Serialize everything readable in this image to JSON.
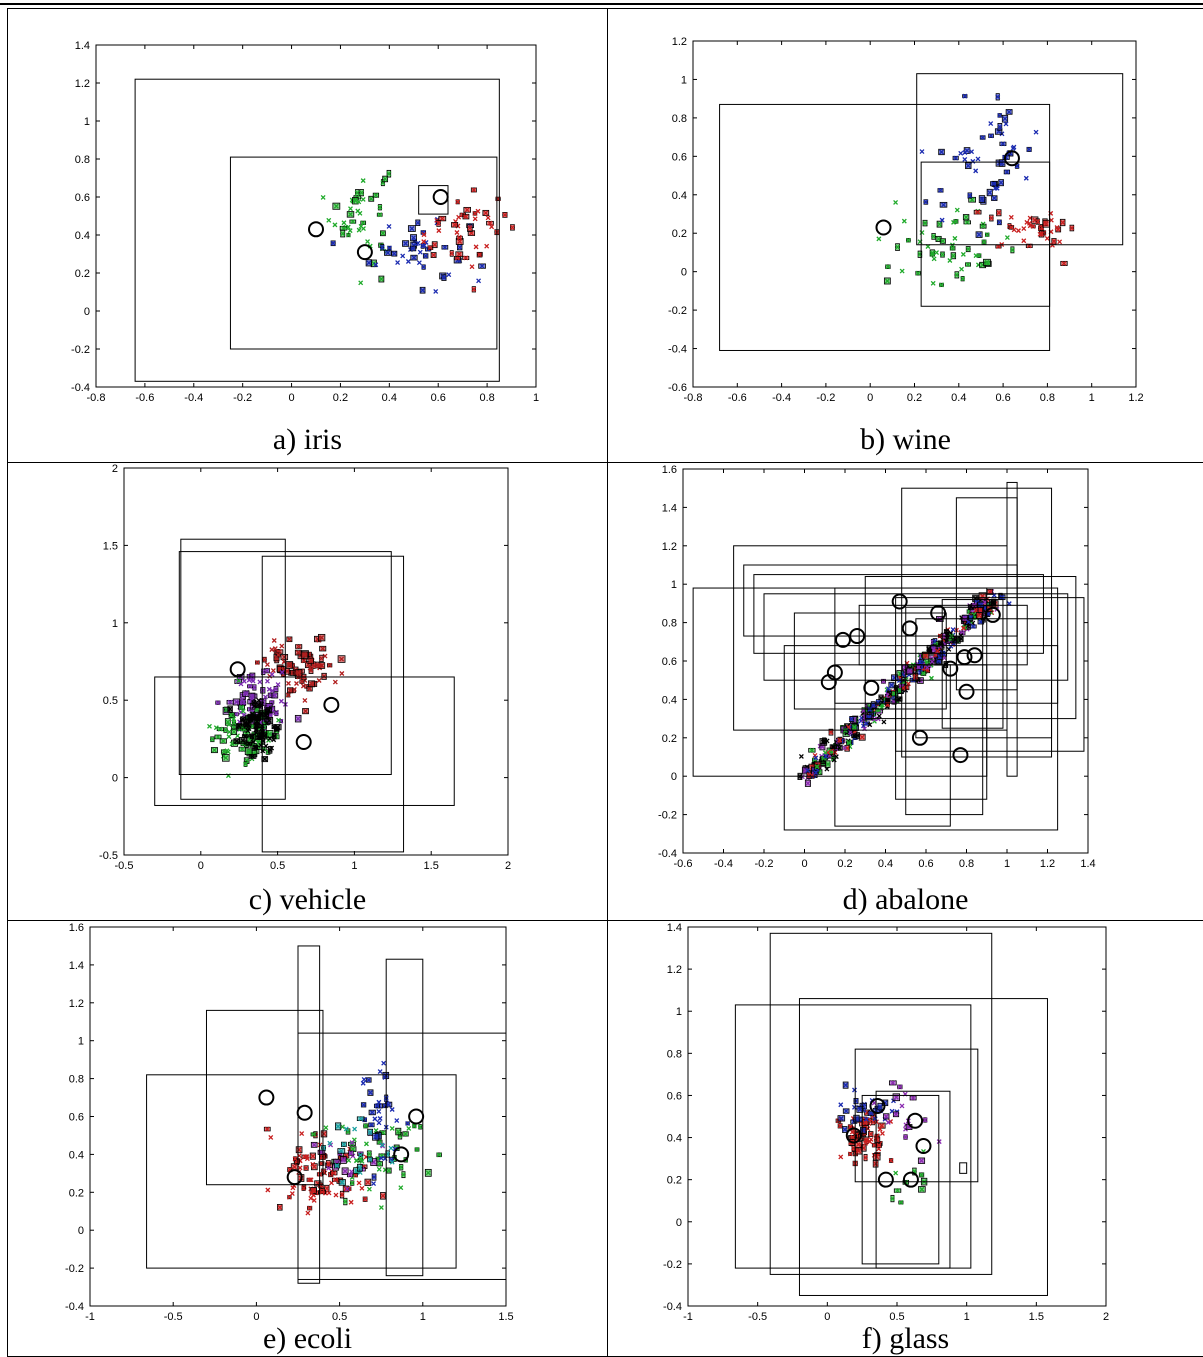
{
  "panels": [
    {
      "caption": "a) iris"
    },
    {
      "caption": "b) wine"
    },
    {
      "caption": "c) vehicle"
    },
    {
      "caption": "d) abalone"
    },
    {
      "caption": "e) ecoli"
    },
    {
      "caption": "f) glass"
    }
  ],
  "chart_data": [
    {
      "type": "scatter",
      "title": "a) iris",
      "xlim": [
        -0.8,
        1
      ],
      "ylim": [
        -0.4,
        1.4
      ],
      "xticks": [
        -0.8,
        -0.6,
        -0.4,
        -0.2,
        0,
        0.2,
        0.4,
        0.6,
        0.8,
        1
      ],
      "xtick_labels": [
        "-0.8",
        "-0.6",
        "-0.4",
        "-0.2",
        "0",
        "0.2",
        "0.4",
        "0.6",
        "0.8",
        "1"
      ],
      "yticks": [
        -0.4,
        -0.2,
        0,
        0.2,
        0.4,
        0.6,
        0.8,
        1,
        1.2,
        1.4
      ],
      "ytick_labels": [
        "-0.4",
        "-0.2",
        "0",
        "0.2",
        "0.4",
        "0.6",
        "0.8",
        "1",
        "1.2",
        "1.4"
      ],
      "colors": [
        "#1faa2a",
        "#1a2ab0",
        "#c81e1e"
      ],
      "clusters": [
        {
          "center": [
            0.28,
            0.52
          ],
          "spread": [
            0.06,
            0.13
          ],
          "count": 45
        },
        {
          "center": [
            0.52,
            0.32
          ],
          "spread": [
            0.1,
            0.1
          ],
          "count": 45
        },
        {
          "center": [
            0.7,
            0.42
          ],
          "spread": [
            0.1,
            0.1
          ],
          "count": 45
        }
      ],
      "circles": [
        [
          0.1,
          0.43
        ],
        [
          0.3,
          0.31
        ],
        [
          0.61,
          0.6
        ]
      ],
      "boxes": [
        [
          -0.64,
          -0.37,
          0.85,
          1.22
        ],
        [
          -0.25,
          -0.2,
          0.84,
          0.81
        ],
        [
          0.52,
          0.51,
          0.64,
          0.66
        ]
      ]
    },
    {
      "type": "scatter",
      "title": "b) wine",
      "xlim": [
        -0.8,
        1.2
      ],
      "ylim": [
        -0.6,
        1.2
      ],
      "xticks": [
        -0.8,
        -0.6,
        -0.4,
        -0.2,
        0,
        0.2,
        0.4,
        0.6,
        0.8,
        1,
        1.2
      ],
      "xtick_labels": [
        "-0.8",
        "-0.6",
        "-0.4",
        "-0.2",
        "0",
        "0.2",
        "0.4",
        "0.6",
        "0.8",
        "1",
        "1.2"
      ],
      "yticks": [
        -0.6,
        -0.4,
        -0.2,
        0,
        0.2,
        0.4,
        0.6,
        0.8,
        1,
        1.2
      ],
      "ytick_labels": [
        "-0.6",
        "-0.4",
        "-0.2",
        "0",
        "0.2",
        "0.4",
        "0.6",
        "0.8",
        "1",
        "1.2"
      ],
      "colors": [
        "#1faa2a",
        "#1a2ab0",
        "#c81e1e"
      ],
      "clusters": [
        {
          "center": [
            0.38,
            0.14
          ],
          "spread": [
            0.14,
            0.1
          ],
          "count": 55
        },
        {
          "center": [
            0.52,
            0.58
          ],
          "spread": [
            0.12,
            0.16
          ],
          "count": 55
        },
        {
          "center": [
            0.75,
            0.22
          ],
          "spread": [
            0.1,
            0.05
          ],
          "count": 40
        }
      ],
      "circles": [
        [
          0.06,
          0.23
        ],
        [
          0.64,
          0.59
        ]
      ],
      "boxes": [
        [
          -0.68,
          -0.41,
          0.81,
          0.87
        ],
        [
          0.21,
          0.14,
          1.14,
          1.03
        ],
        [
          0.23,
          -0.18,
          0.81,
          0.57
        ]
      ]
    },
    {
      "type": "scatter",
      "title": "c) vehicle",
      "xlim": [
        -0.5,
        2
      ],
      "ylim": [
        -0.5,
        2
      ],
      "xticks": [
        -0.5,
        0,
        0.5,
        1,
        1.5,
        2
      ],
      "xtick_labels": [
        "-0.5",
        "0",
        "0.5",
        "1",
        "1.5",
        "2"
      ],
      "yticks": [
        -0.5,
        0,
        0.5,
        1,
        1.5,
        2
      ],
      "ytick_labels": [
        "-0.5",
        "0",
        "0.5",
        "1",
        "1.5",
        "2"
      ],
      "colors": [
        "#b01e1e",
        "#7a2ab0",
        "#1faa2a",
        "#000000"
      ],
      "clusters": [
        {
          "center": [
            0.65,
            0.72
          ],
          "spread": [
            0.12,
            0.09
          ],
          "count": 90
        },
        {
          "center": [
            0.38,
            0.48
          ],
          "spread": [
            0.1,
            0.1
          ],
          "count": 90
        },
        {
          "center": [
            0.3,
            0.28
          ],
          "spread": [
            0.1,
            0.1
          ],
          "count": 90
        },
        {
          "center": [
            0.38,
            0.32
          ],
          "spread": [
            0.07,
            0.09
          ],
          "count": 70
        }
      ],
      "circles": [
        [
          0.24,
          0.7
        ],
        [
          0.85,
          0.47
        ],
        [
          0.67,
          0.23
        ]
      ],
      "boxes": [
        [
          -0.13,
          -0.14,
          0.55,
          1.54
        ],
        [
          -0.14,
          0.02,
          1.24,
          1.46
        ],
        [
          0.4,
          -0.48,
          1.32,
          1.43
        ],
        [
          -0.3,
          -0.18,
          1.65,
          0.65
        ]
      ]
    },
    {
      "type": "scatter",
      "title": "d) abalone",
      "xlim": [
        -0.6,
        1.4
      ],
      "ylim": [
        -0.4,
        1.6
      ],
      "xticks": [
        -0.6,
        -0.4,
        -0.2,
        0,
        0.2,
        0.4,
        0.6,
        0.8,
        1,
        1.2,
        1.4
      ],
      "xtick_labels": [
        "-0.6",
        "-0.4",
        "-0.2",
        "0",
        "0.2",
        "0.4",
        "0.6",
        "0.8",
        "1",
        "1.2",
        "1.4"
      ],
      "yticks": [
        -0.4,
        -0.2,
        0,
        0.2,
        0.4,
        0.6,
        0.8,
        1,
        1.2,
        1.4,
        1.6
      ],
      "ytick_labels": [
        "-0.4",
        "-0.2",
        "0",
        "0.2",
        "0.4",
        "0.6",
        "0.8",
        "1",
        "1.2",
        "1.4",
        "1.6"
      ],
      "colors": [
        "#c81e1e",
        "#1faa2a",
        "#1a2ab0",
        "#8a2ab0",
        "#000000"
      ],
      "diagonal": {
        "from": [
          0.0,
          0.0
        ],
        "to": [
          0.95,
          0.95
        ],
        "jitter": 0.03,
        "count": 420
      },
      "circles": [
        [
          0.47,
          0.91
        ],
        [
          0.66,
          0.85
        ],
        [
          0.93,
          0.84
        ],
        [
          0.52,
          0.77
        ],
        [
          0.19,
          0.71
        ],
        [
          0.26,
          0.73
        ],
        [
          0.15,
          0.54
        ],
        [
          0.12,
          0.49
        ],
        [
          0.33,
          0.46
        ],
        [
          0.72,
          0.56
        ],
        [
          0.84,
          0.63
        ],
        [
          0.79,
          0.62
        ],
        [
          0.8,
          0.44
        ],
        [
          0.57,
          0.2
        ],
        [
          0.77,
          0.11
        ]
      ],
      "boxes": [
        [
          -0.55,
          0.0,
          0.9,
          0.98
        ],
        [
          -0.35,
          0.24,
          1.0,
          1.2
        ],
        [
          -0.3,
          0.73,
          1.05,
          1.1
        ],
        [
          -0.25,
          0.64,
          1.18,
          1.05
        ],
        [
          -0.2,
          0.5,
          1.3,
          0.95
        ],
        [
          -0.1,
          -0.28,
          1.25,
          0.68
        ],
        [
          -0.05,
          0.35,
          0.7,
          0.85
        ],
        [
          0.15,
          0.38,
          1.25,
          0.98
        ],
        [
          0.3,
          0.3,
          1.34,
          1.04
        ],
        [
          0.45,
          0.13,
          1.38,
          0.93
        ],
        [
          0.55,
          0.2,
          1.22,
          0.82
        ],
        [
          0.68,
          0.25,
          0.98,
          0.92
        ],
        [
          0.75,
          0.45,
          1.05,
          1.45
        ],
        [
          0.48,
          0.1,
          1.22,
          1.5
        ],
        [
          1.0,
          0.0,
          1.05,
          1.53
        ],
        [
          0.15,
          -0.26,
          0.72,
          0.58
        ],
        [
          0.45,
          -0.12,
          0.9,
          0.58
        ],
        [
          0.5,
          -0.2,
          0.88,
          0.88
        ],
        [
          0.27,
          0.58,
          1.1,
          0.89
        ]
      ]
    },
    {
      "type": "scatter",
      "title": "e) ecoli",
      "xlim": [
        -1,
        1.5
      ],
      "ylim": [
        -0.4,
        1.6
      ],
      "xticks": [
        -1,
        -0.5,
        0,
        0.5,
        1,
        1.5
      ],
      "xtick_labels": [
        "-1",
        "-0.5",
        "0",
        "0.5",
        "1",
        "1.5"
      ],
      "yticks": [
        -0.4,
        -0.2,
        0,
        0.2,
        0.4,
        0.6,
        0.8,
        1,
        1.2,
        1.4,
        1.6
      ],
      "ytick_labels": [
        "-0.4",
        "-0.2",
        "0",
        "0.2",
        "0.4",
        "0.6",
        "0.8",
        "1",
        "1.2",
        "1.4",
        "1.6"
      ],
      "colors": [
        "#c81e1e",
        "#1faa2a",
        "#1a2ab0",
        "#8a2ab0",
        "#1aa0a0",
        "#b4b41e"
      ],
      "clusters": [
        {
          "center": [
            0.38,
            0.3
          ],
          "spread": [
            0.14,
            0.1
          ],
          "count": 90
        },
        {
          "center": [
            0.72,
            0.4
          ],
          "spread": [
            0.14,
            0.1
          ],
          "count": 50
        },
        {
          "center": [
            0.74,
            0.62
          ],
          "spread": [
            0.05,
            0.14
          ],
          "count": 35
        },
        {
          "center": [
            0.55,
            0.38
          ],
          "spread": [
            0.1,
            0.08
          ],
          "count": 20
        },
        {
          "center": [
            0.62,
            0.42
          ],
          "spread": [
            0.12,
            0.08
          ],
          "count": 20
        }
      ],
      "circles": [
        [
          0.06,
          0.7
        ],
        [
          0.29,
          0.62
        ],
        [
          0.96,
          0.6
        ],
        [
          0.87,
          0.4
        ],
        [
          0.23,
          0.28
        ]
      ],
      "boxes": [
        [
          -0.66,
          -0.2,
          1.2,
          0.82
        ],
        [
          -0.3,
          0.24,
          0.4,
          1.16
        ],
        [
          0.25,
          -0.26,
          1.5,
          1.04
        ],
        [
          0.25,
          -0.28,
          0.38,
          1.5
        ],
        [
          0.78,
          -0.24,
          1.0,
          1.43
        ]
      ]
    },
    {
      "type": "scatter",
      "title": "f) glass",
      "xlim": [
        -1,
        2
      ],
      "ylim": [
        -0.4,
        1.4
      ],
      "xticks": [
        -1,
        -0.5,
        0,
        0.5,
        1,
        1.5,
        2
      ],
      "xtick_labels": [
        "-1",
        "-0.5",
        "0",
        "0.5",
        "1",
        "1.5",
        "2"
      ],
      "yticks": [
        -0.4,
        -0.2,
        0,
        0.2,
        0.4,
        0.6,
        0.8,
        1,
        1.2,
        1.4
      ],
      "ytick_labels": [
        "-0.4",
        "-0.2",
        "0",
        "0.2",
        "0.4",
        "0.6",
        "0.8",
        "1",
        "1.2",
        "1.4"
      ],
      "colors": [
        "#c81e1e",
        "#1a2ab0",
        "#8a2ab0",
        "#1faa2a",
        "#000000"
      ],
      "clusters": [
        {
          "center": [
            0.27,
            0.4
          ],
          "spread": [
            0.08,
            0.07
          ],
          "count": 70
        },
        {
          "center": [
            0.3,
            0.55
          ],
          "spread": [
            0.1,
            0.06
          ],
          "count": 30
        },
        {
          "center": [
            0.55,
            0.48
          ],
          "spread": [
            0.12,
            0.1
          ],
          "count": 18
        },
        {
          "center": [
            0.6,
            0.18
          ],
          "spread": [
            0.1,
            0.08
          ],
          "count": 10
        }
      ],
      "circles": [
        [
          0.19,
          0.41
        ],
        [
          0.36,
          0.55
        ],
        [
          0.42,
          0.2
        ],
        [
          0.6,
          0.2
        ],
        [
          0.63,
          0.48
        ],
        [
          0.69,
          0.36
        ]
      ],
      "boxes": [
        [
          -0.66,
          -0.22,
          1.03,
          1.03
        ],
        [
          -0.41,
          -0.25,
          1.18,
          1.37
        ],
        [
          -0.2,
          -0.35,
          1.58,
          1.06
        ],
        [
          0.2,
          0.19,
          1.08,
          0.82
        ],
        [
          0.25,
          -0.2,
          0.8,
          0.6
        ],
        [
          0.35,
          -0.22,
          0.88,
          0.62
        ],
        [
          0.95,
          0.23,
          1.0,
          0.28
        ]
      ]
    }
  ]
}
